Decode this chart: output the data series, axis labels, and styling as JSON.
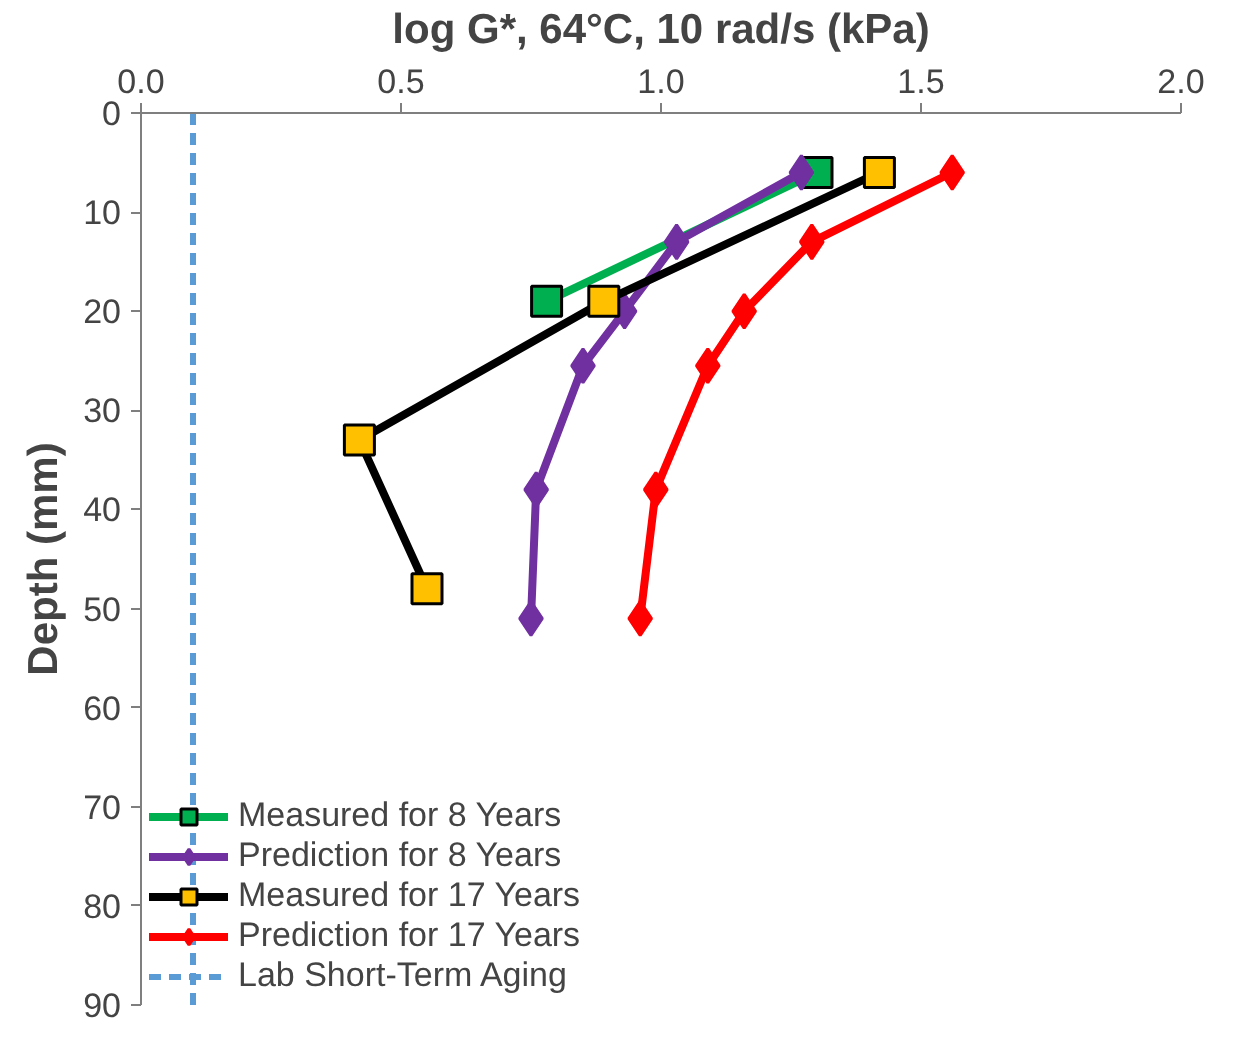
{
  "chart_data": {
    "type": "line",
    "xlabel": "log G*, 64°C, 10 rad/s (kPa)",
    "ylabel": "Depth (mm)",
    "xlim": [
      0,
      2
    ],
    "xticks": [
      {
        "value": 0,
        "label": "0.0"
      },
      {
        "value": 0.5,
        "label": "0.5"
      },
      {
        "value": 1,
        "label": "1.0"
      },
      {
        "value": 1.5,
        "label": "1.5"
      },
      {
        "value": 2,
        "label": "2.0"
      }
    ],
    "ylim": [
      90,
      0
    ],
    "yticks": [
      0,
      10,
      20,
      30,
      40,
      50,
      60,
      70,
      80,
      90
    ],
    "grid": false,
    "legend": "bottom left",
    "line_style": "solid",
    "series": [
      {
        "name": "Measured for 8 Years",
        "color": "#00b050",
        "marker": "square",
        "x": [
          1.3,
          0.78
        ],
        "values": [
          6,
          19
        ]
      },
      {
        "name": "Prediction for 8 Years",
        "color": "#7030a0",
        "marker": "diamond",
        "x": [
          1.27,
          1.03,
          0.93,
          0.85,
          0.76,
          0.75
        ],
        "values": [
          6,
          13,
          20,
          25.5,
          38,
          51
        ]
      },
      {
        "name": "Measured for 17 Years",
        "color": "#000000",
        "marker": "square",
        "colors": [
          "#ffc000",
          "#ffc000",
          "#ffc000",
          "#ffc000"
        ],
        "x": [
          1.42,
          0.89,
          0.42,
          0.55
        ],
        "values": [
          6,
          19,
          33,
          48
        ]
      },
      {
        "name": "Prediction for 17 Years",
        "color": "#ff0000",
        "marker": "diamond",
        "x": [
          1.56,
          1.29,
          1.16,
          1.09,
          0.99,
          0.96
        ],
        "values": [
          6,
          13,
          20,
          25.5,
          38,
          51
        ]
      }
    ],
    "ref_lines": [
      {
        "axis": "x",
        "value": 0.1,
        "label": "Lab Short-Term Aging",
        "color": "#5b9bd5",
        "line_style": "dashed"
      }
    ]
  }
}
